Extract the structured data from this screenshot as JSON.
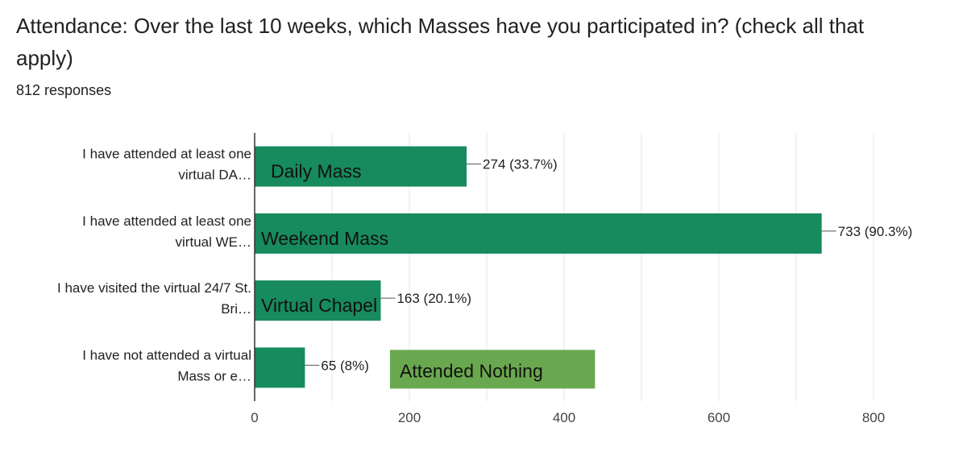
{
  "question": {
    "title": "Attendance: Over the last 10 weeks, which Masses have you participated in? (check all that apply)",
    "responses": "812 responses"
  },
  "colors": {
    "bar": "#178a5e",
    "annotation_box": "#6aa84f",
    "grid": "#e6e6e6",
    "axis": "#333333"
  },
  "chart_data": {
    "type": "bar",
    "orientation": "horizontal",
    "categories": [
      [
        "I have attended at least one",
        "virtual DA…"
      ],
      [
        "I have attended at least one",
        "virtual WE…"
      ],
      [
        "I have visited the virtual 24/7 St.",
        "Bri…"
      ],
      [
        "I have not attended a virtual",
        "Mass or e…"
      ]
    ],
    "values": [
      274,
      733,
      163,
      65
    ],
    "value_labels": [
      "274 (33.7%)",
      "733 (90.3%)",
      "163 (20.1%)",
      "65 (8%)"
    ],
    "bar_annotations": [
      "Daily Mass",
      "Weekend Mass",
      "Virtual Chapel"
    ],
    "extra_annotation": {
      "label": "Attended Nothing",
      "start": 175,
      "end": 440
    },
    "xlim": [
      0,
      800
    ],
    "xticks": [
      0,
      200,
      400,
      600,
      800
    ],
    "grid": true
  }
}
